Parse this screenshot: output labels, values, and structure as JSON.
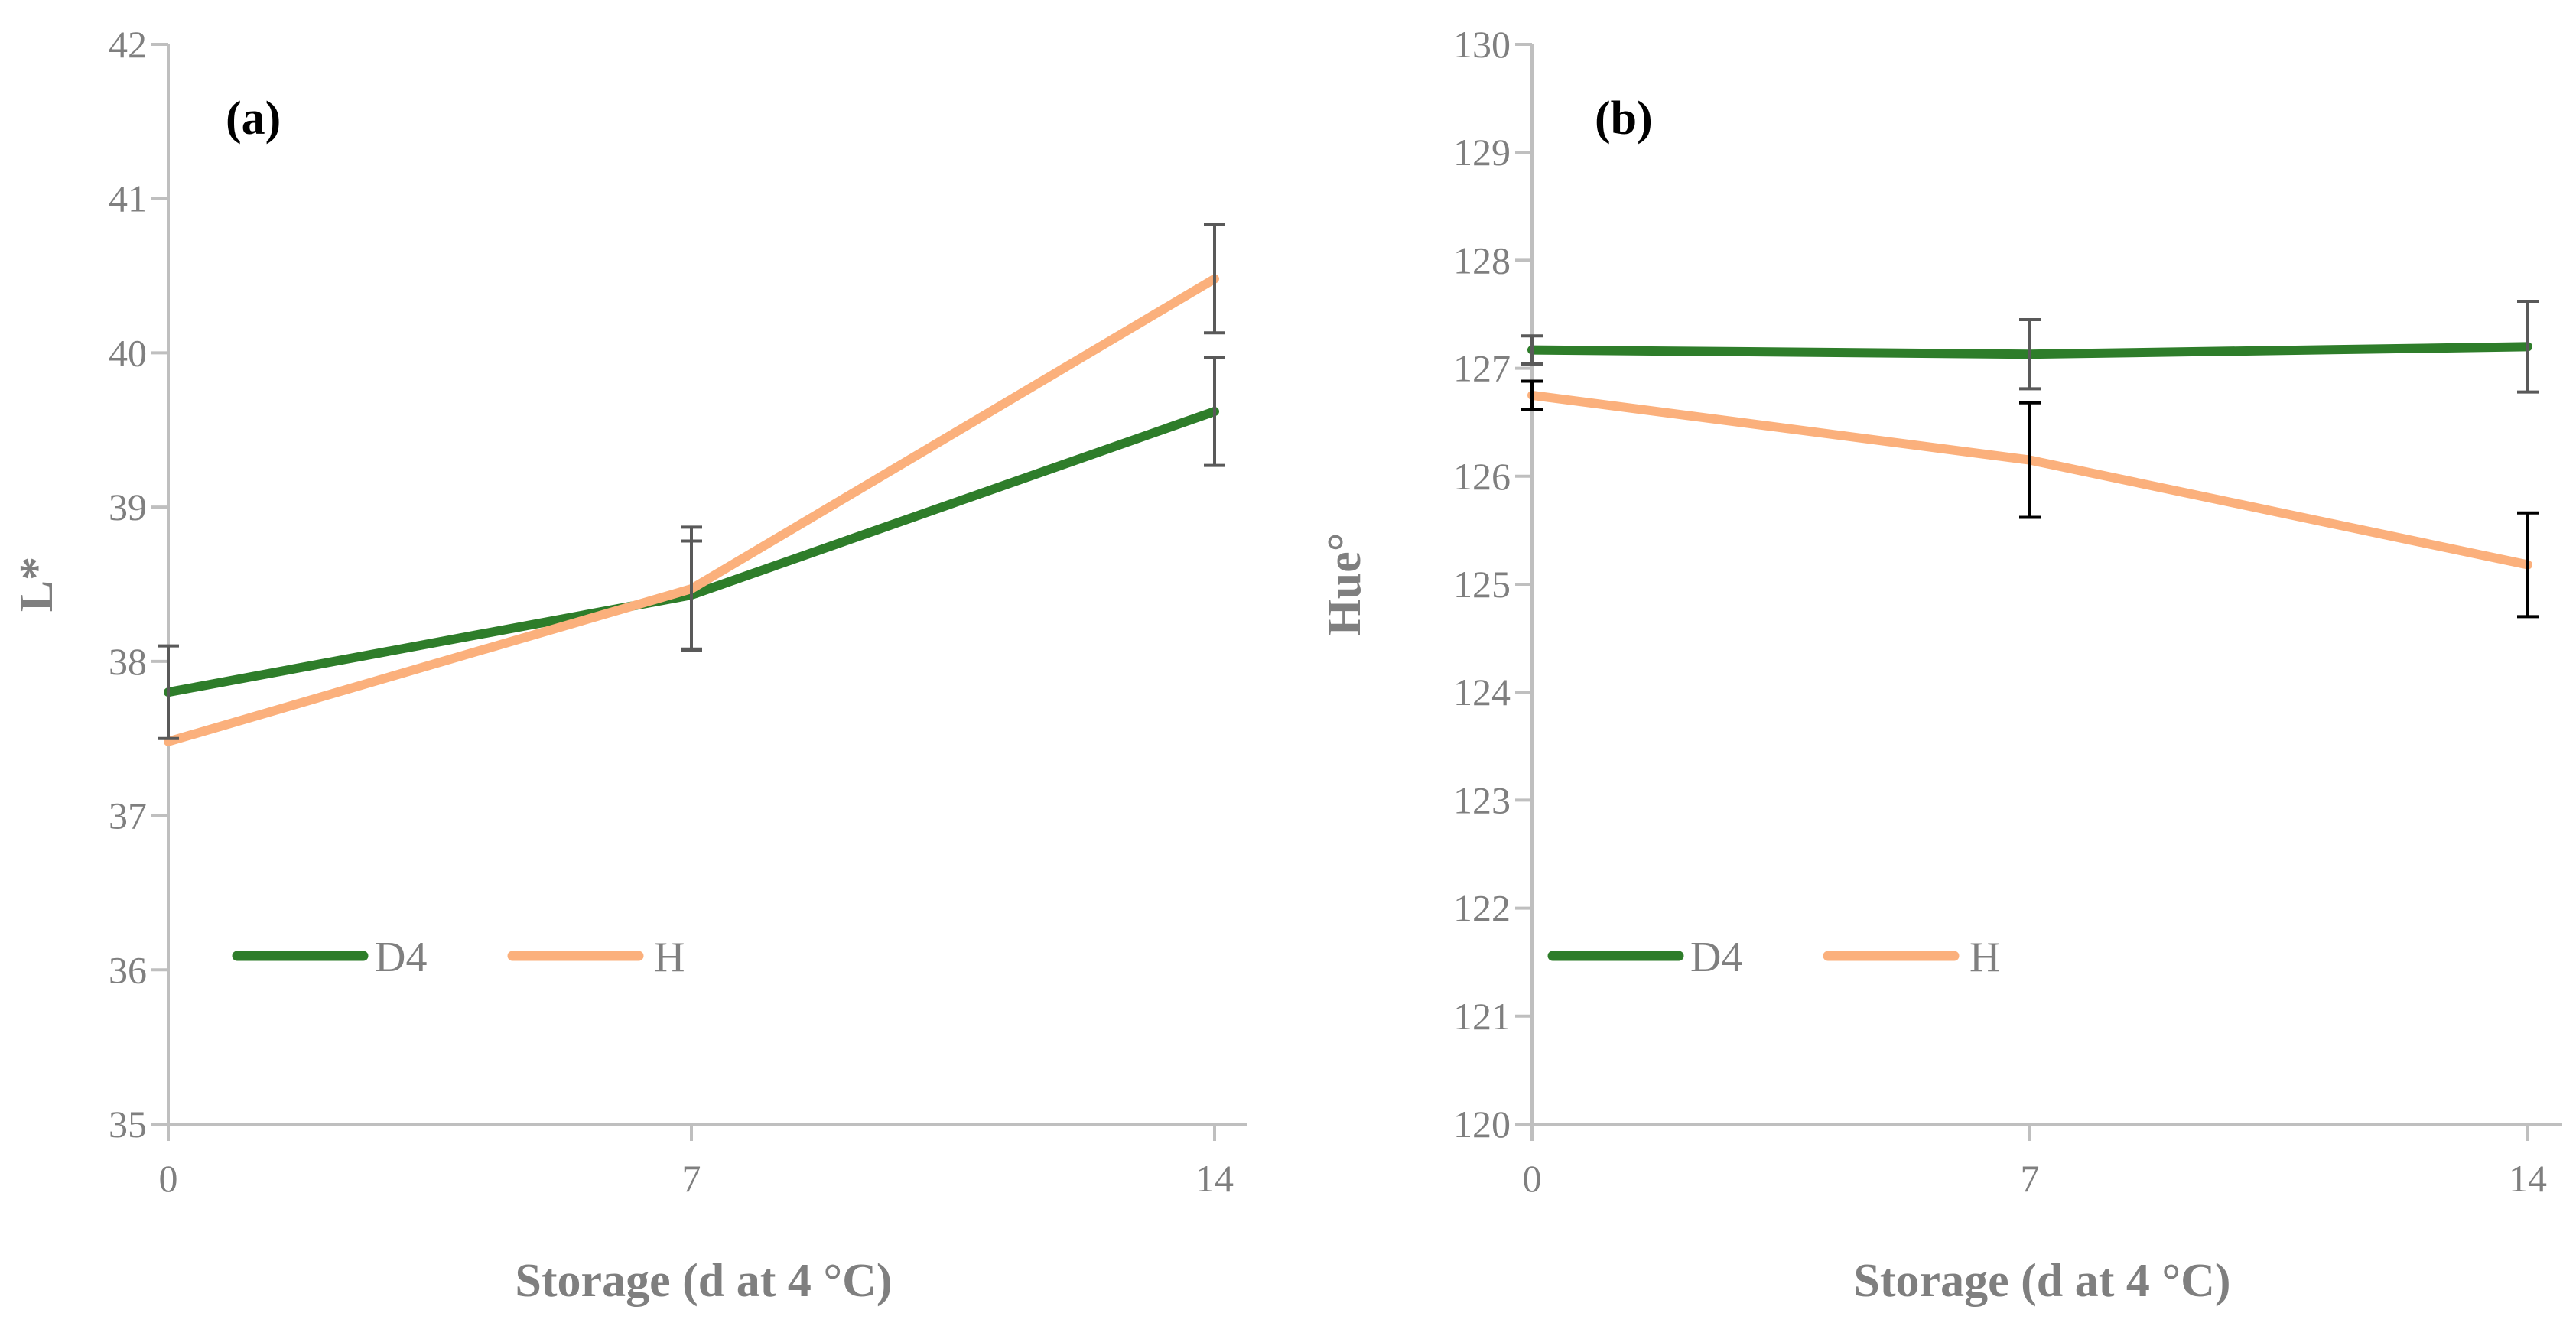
{
  "chart_data": [
    {
      "type": "line",
      "panel_label": "(a)",
      "xlabel": "Storage (d at 4 °C)",
      "ylabel": "L*",
      "x": [
        0,
        7,
        14
      ],
      "xlim": [
        0,
        14.5
      ],
      "ylim": [
        35,
        42
      ],
      "yticks": [
        35,
        36,
        37,
        38,
        39,
        40,
        41,
        42
      ],
      "xticks": [
        0,
        7,
        14
      ],
      "grid": false,
      "legend_position": "lower-left",
      "series": [
        {
          "name": "D4",
          "color": "#2e7d2a",
          "values": [
            37.8,
            38.43,
            39.62
          ],
          "errors": [
            0.3,
            0.35,
            0.35
          ],
          "error_color": "#595959"
        },
        {
          "name": "H",
          "color": "#fbb07c",
          "values": [
            37.48,
            38.47,
            40.48
          ],
          "errors": [
            0.0,
            0.4,
            0.35
          ],
          "error_color": "#595959"
        }
      ]
    },
    {
      "type": "line",
      "panel_label": "(b)",
      "xlabel": "Storage (d at 4 °C)",
      "ylabel": "Hue°",
      "x": [
        0,
        7,
        14
      ],
      "xlim": [
        0,
        14.5
      ],
      "ylim": [
        120,
        130
      ],
      "yticks": [
        120,
        121,
        122,
        123,
        124,
        125,
        126,
        127,
        128,
        129,
        130
      ],
      "xticks": [
        0,
        7,
        14
      ],
      "grid": false,
      "legend_position": "lower-left",
      "series": [
        {
          "name": "D4",
          "color": "#2e7d2a",
          "values": [
            127.17,
            127.13,
            127.2
          ],
          "errors": [
            0.13,
            0.32,
            0.42
          ],
          "error_color": "#595959"
        },
        {
          "name": "H",
          "color": "#fbb07c",
          "values": [
            126.75,
            126.15,
            125.18
          ],
          "errors": [
            0.13,
            0.53,
            0.48
          ],
          "error_color": "#000000"
        }
      ]
    }
  ]
}
